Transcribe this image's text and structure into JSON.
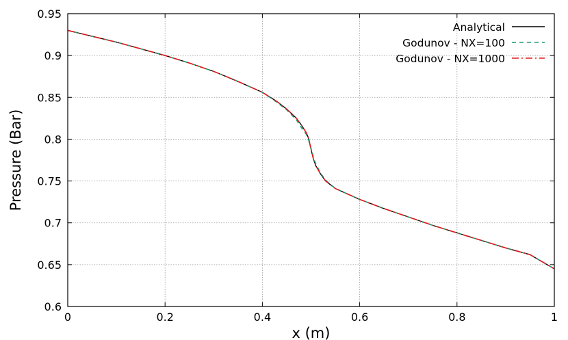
{
  "chart_data": {
    "type": "line",
    "title": "",
    "xlabel": "x (m)",
    "ylabel": "Pressure (Bar)",
    "xlim": [
      0,
      1
    ],
    "ylim": [
      0.6,
      0.95
    ],
    "xticks": [
      0,
      0.2,
      0.4,
      0.6,
      0.8,
      1
    ],
    "xtick_labels": [
      "0",
      "0.2",
      "0.4",
      "0.6",
      "0.8",
      "1"
    ],
    "yticks": [
      0.6,
      0.65,
      0.7,
      0.75,
      0.8,
      0.85,
      0.9,
      0.95
    ],
    "ytick_labels": [
      "0.6",
      "0.65",
      "0.7",
      "0.75",
      "0.8",
      "0.85",
      "0.9",
      "0.95"
    ],
    "grid": true,
    "legend_position": "top-right",
    "x": [
      0,
      0.05,
      0.1,
      0.15,
      0.2,
      0.25,
      0.3,
      0.35,
      0.4,
      0.43,
      0.45,
      0.47,
      0.48,
      0.49,
      0.495,
      0.5,
      0.505,
      0.51,
      0.52,
      0.53,
      0.55,
      0.6,
      0.65,
      0.7,
      0.75,
      0.8,
      0.85,
      0.9,
      0.95,
      1
    ],
    "series": [
      {
        "name": "Analytical",
        "color": "#000000",
        "dash": "solid",
        "values": [
          0.93,
          0.923,
          0.916,
          0.908,
          0.9,
          0.891,
          0.881,
          0.869,
          0.856,
          0.845,
          0.836,
          0.825,
          0.817,
          0.808,
          0.801,
          0.788,
          0.776,
          0.768,
          0.758,
          0.75,
          0.741,
          0.728,
          0.717,
          0.707,
          0.697,
          0.688,
          0.679,
          0.67,
          0.662,
          0.645
        ]
      },
      {
        "name": "Godunov - NX=100",
        "color": "#1a9e77",
        "dash": "dashed",
        "values": [
          0.93,
          0.923,
          0.916,
          0.908,
          0.9,
          0.891,
          0.881,
          0.869,
          0.856,
          0.844,
          0.835,
          0.823,
          0.814,
          0.806,
          0.799,
          0.789,
          0.778,
          0.77,
          0.759,
          0.751,
          0.741,
          0.728,
          0.717,
          0.707,
          0.697,
          0.688,
          0.679,
          0.67,
          0.662,
          0.645
        ]
      },
      {
        "name": "Godunov - NX=1000",
        "color": "#e41a1c",
        "dash": "dash-dot",
        "values": [
          0.93,
          0.923,
          0.916,
          0.908,
          0.9,
          0.891,
          0.881,
          0.869,
          0.856,
          0.845,
          0.836,
          0.825,
          0.817,
          0.808,
          0.801,
          0.788,
          0.776,
          0.768,
          0.758,
          0.75,
          0.741,
          0.728,
          0.717,
          0.707,
          0.697,
          0.688,
          0.679,
          0.67,
          0.662,
          0.645
        ]
      }
    ]
  }
}
